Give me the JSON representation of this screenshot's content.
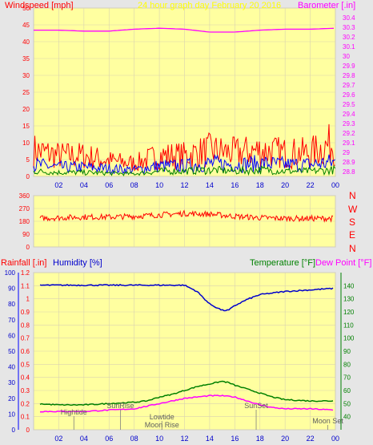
{
  "chart_data": [
    {
      "type": "line",
      "title": "24 hour graph day   February 20 2016",
      "ylabel_left": "Windspeed [mph]",
      "ylabel_right": "Barometer [.in]",
      "x_ticks": [
        "02",
        "04",
        "06",
        "08",
        "10",
        "12",
        "14",
        "16",
        "18",
        "20",
        "22",
        "00"
      ],
      "y_left": {
        "range": [
          0,
          50
        ],
        "ticks": [
          "0",
          "5",
          "10",
          "15",
          "20",
          "25",
          "30",
          "35",
          "40",
          "45",
          "50"
        ]
      },
      "y_right": {
        "range": [
          28.75,
          30.5
        ],
        "ticks": [
          "28.8",
          "28.9",
          "29",
          "29.1",
          "29.2",
          "29.3",
          "29.4",
          "29.5",
          "29.6",
          "29.7",
          "29.8",
          "29.9",
          "30",
          "30.1",
          "30.2",
          "30.3",
          "30.4"
        ]
      },
      "series": [
        {
          "axis": "right",
          "color": "#ff00ff",
          "hours": [
            0,
            2,
            4,
            6,
            8,
            10,
            12,
            14,
            16,
            18,
            20,
            22,
            24
          ],
          "values": [
            30.27,
            30.27,
            30.26,
            30.26,
            30.28,
            30.29,
            30.28,
            30.25,
            30.25,
            30.27,
            30.28,
            30.28,
            30.29
          ]
        },
        {
          "axis": "left",
          "color": "#ff0000",
          "style": "noise",
          "hours": [
            0,
            2,
            4,
            6,
            8,
            10,
            12,
            14,
            16,
            18,
            20,
            22,
            24
          ],
          "values": [
            10,
            8,
            8,
            6,
            5,
            8,
            8,
            10,
            9,
            10,
            9,
            9,
            13
          ]
        },
        {
          "axis": "left",
          "color": "#0000ff",
          "style": "noise",
          "hours": [
            0,
            2,
            4,
            6,
            8,
            10,
            12,
            14,
            16,
            18,
            20,
            22,
            24
          ],
          "values": [
            4.5,
            3.5,
            3.5,
            3,
            2.5,
            4,
            4,
            5,
            4.5,
            5,
            4.5,
            4.5,
            5.5
          ]
        },
        {
          "axis": "left",
          "color": "#008000",
          "style": "noise",
          "hours": [
            0,
            2,
            4,
            6,
            8,
            10,
            12,
            14,
            16,
            18,
            20,
            22,
            24
          ],
          "values": [
            2,
            1.5,
            1.5,
            1.2,
            1,
            2,
            2,
            2.5,
            2,
            2.5,
            2,
            2,
            2.5
          ]
        }
      ]
    },
    {
      "type": "line",
      "y_left": {
        "range": [
          0,
          360
        ],
        "ticks": [
          "0",
          "90",
          "180",
          "270",
          "360"
        ]
      },
      "compass": [
        "N",
        "W",
        "S",
        "E",
        "N"
      ],
      "series": [
        {
          "axis": "left",
          "color": "#ff0000",
          "style": "noise",
          "hours": [
            0,
            2,
            4,
            6,
            8,
            10,
            12,
            14,
            16,
            18,
            20,
            22,
            24
          ],
          "values": [
            200,
            205,
            210,
            210,
            215,
            225,
            235,
            230,
            215,
            205,
            200,
            200,
            200
          ]
        }
      ]
    },
    {
      "type": "line",
      "ylabel_left_1": "Rainfall [.in]",
      "ylabel_left_2": "Humidity [%]",
      "ylabel_right_1": "Temperature [°F]",
      "ylabel_right_2": "Dew Point [°F]",
      "x_ticks": [
        "02",
        "04",
        "06",
        "08",
        "10",
        "12",
        "14",
        "16",
        "18",
        "20",
        "22",
        "00"
      ],
      "y_rain": {
        "range": [
          0,
          1.2
        ],
        "ticks": [
          "0",
          "0.1",
          "0.2",
          "0.3",
          "0.4",
          "0.5",
          "0.6",
          "0.7",
          "0.8",
          "0.9",
          "1",
          "1.1",
          "1.2"
        ]
      },
      "y_humidity": {
        "range": [
          0,
          100
        ],
        "ticks": [
          "0",
          "10",
          "20",
          "30",
          "40",
          "50",
          "60",
          "70",
          "80",
          "90",
          "100"
        ]
      },
      "y_temp": {
        "range": [
          30,
          150
        ],
        "ticks": [
          "40",
          "50",
          "60",
          "70",
          "80",
          "90",
          "100",
          "110",
          "120",
          "130",
          "140"
        ]
      },
      "series": [
        {
          "axis": "humidity",
          "color": "#0000cc",
          "hours": [
            0,
            2,
            4,
            6,
            8,
            10,
            12,
            13,
            14,
            15,
            15.5,
            16,
            17,
            18,
            19,
            20,
            22,
            24
          ],
          "values": [
            92,
            92,
            92,
            92,
            92,
            92,
            92,
            88,
            80,
            76,
            76,
            79,
            83,
            86,
            87,
            88,
            89,
            90
          ]
        },
        {
          "axis": "temp",
          "color": "#008000",
          "hours": [
            0,
            2,
            4,
            6,
            8,
            9,
            10,
            11,
            12,
            13,
            14,
            15,
            15.5,
            16,
            17,
            18,
            19,
            20,
            22,
            24
          ],
          "values": [
            50,
            49,
            49,
            50,
            51,
            52,
            55,
            57,
            60,
            63,
            65,
            67,
            66,
            64,
            61,
            58,
            55,
            53,
            52,
            52
          ]
        },
        {
          "axis": "temp",
          "color": "#ff00ff",
          "hours": [
            0,
            2,
            4,
            6,
            8,
            9,
            10,
            11,
            12,
            13,
            14,
            15,
            16,
            17,
            18,
            19,
            20,
            22,
            24
          ],
          "values": [
            44,
            44,
            44,
            45,
            46,
            48,
            50,
            52,
            54,
            55,
            56,
            56,
            55,
            52,
            49,
            47,
            46,
            46,
            45
          ]
        }
      ],
      "events": [
        {
          "label": "Hightide",
          "hour": 3.2
        },
        {
          "label": "SunRise",
          "hour": 6.9
        },
        {
          "label": "Lowtide",
          "hour": 10.2
        },
        {
          "label": "Moon Rise",
          "hour": 10.2
        },
        {
          "label": "SunSet",
          "hour": 17.7
        },
        {
          "label": "Moon Set",
          "hour": 23.4
        }
      ]
    }
  ],
  "compass_labels": [
    "N",
    "W",
    "S",
    "E",
    "N"
  ]
}
